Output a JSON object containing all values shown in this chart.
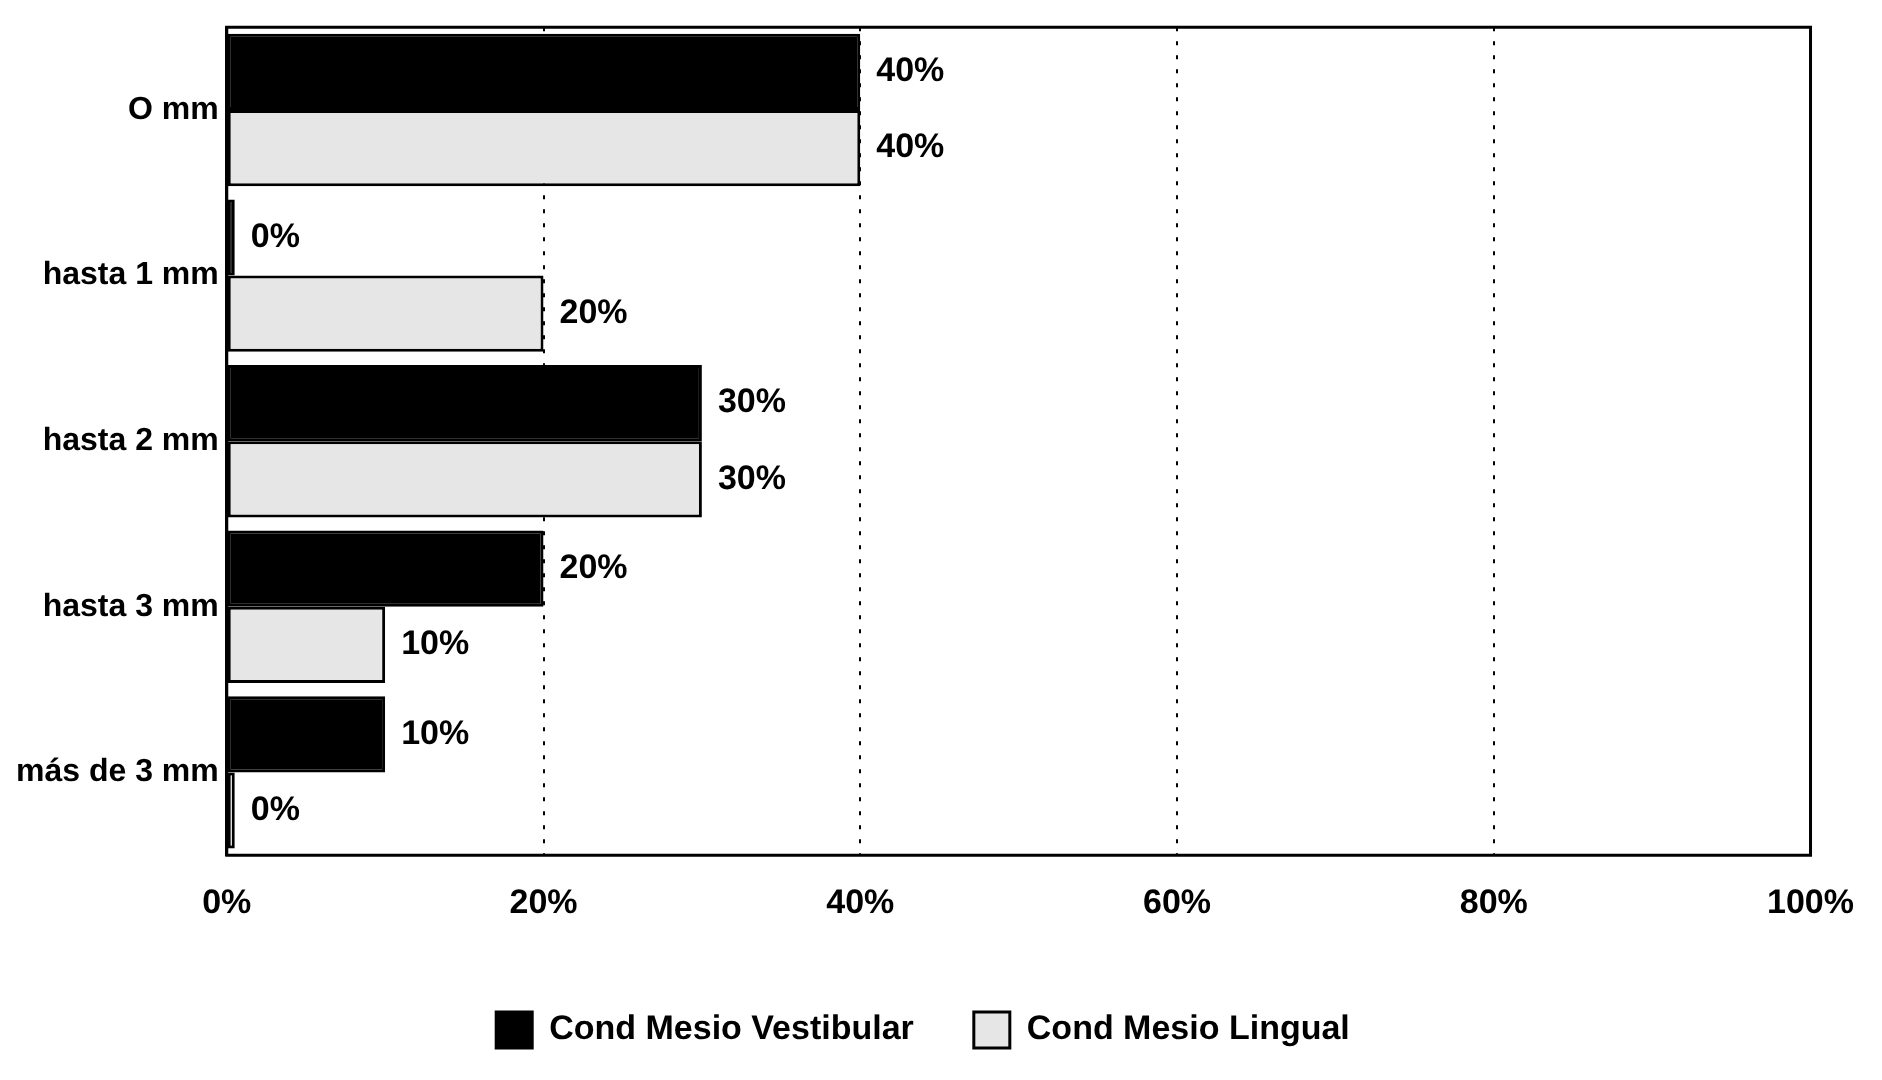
{
  "chart_data": {
    "type": "bar",
    "orientation": "horizontal",
    "categories": [
      "O mm",
      "hasta 1 mm",
      "hasta 2 mm",
      "hasta 3 mm",
      "más de 3 mm"
    ],
    "series": [
      {
        "name": "Cond Mesio Vestibular",
        "color": "#000000",
        "values": [
          40,
          0,
          30,
          20,
          10
        ],
        "value_labels": [
          "40%",
          "0%",
          "30%",
          "20%",
          "10%"
        ]
      },
      {
        "name": "Cond Mesio Lingual",
        "color": "#e6e6e6",
        "values": [
          40,
          20,
          30,
          10,
          0
        ],
        "value_labels": [
          "40%",
          "20%",
          "30%",
          "10%",
          "0%"
        ]
      }
    ],
    "xlim": [
      0,
      100
    ],
    "xticks": [
      {
        "value": 0,
        "label": "0%"
      },
      {
        "value": 20,
        "label": "20%"
      },
      {
        "value": 40,
        "label": "40%"
      },
      {
        "value": 60,
        "label": "60%"
      },
      {
        "value": 80,
        "label": "80%"
      },
      {
        "value": 100,
        "label": "100%"
      }
    ],
    "grid": "x",
    "line_style": "dotted",
    "legend": "bottom"
  }
}
